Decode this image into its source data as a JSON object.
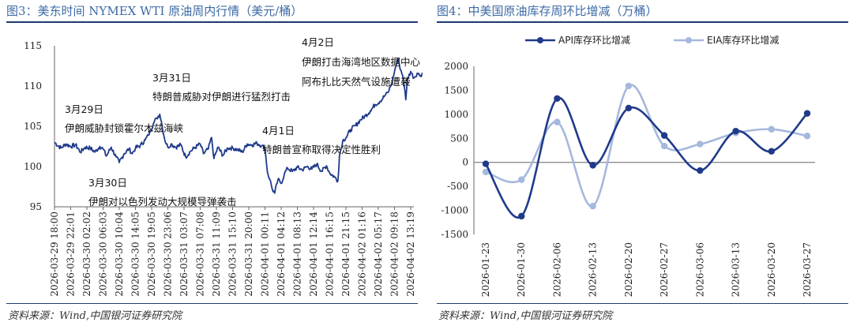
{
  "left": {
    "title": "图3：美东时间 NYMEX WTI 原油周内行情（美元/桶）",
    "source": "资料来源：Wind,中国银河证券研究院",
    "chart_data": {
      "type": "line",
      "title": "美东时间 NYMEX WTI 原油周内行情（美元/桶）",
      "ylim": [
        95,
        115
      ],
      "yticks": [
        95,
        100,
        105,
        110,
        115
      ],
      "xlabels": [
        "2026-03-29 18:00",
        "2026-03-29 22:01",
        "2026-03-30 02:02",
        "2026-03-30 06:03",
        "2026-03-30 10:04",
        "2026-03-30 14:05",
        "2026-03-30 19:05",
        "2026-03-30 23:06",
        "2026-03-31 03:07",
        "2026-03-31 07:08",
        "2026-03-31 11:09",
        "2026-03-31 15:10",
        "2026-03-31 20:00",
        "2026-04-01 00:11",
        "2026-04-01 04:12",
        "2026-04-01 08:13",
        "2026-04-01 12:14",
        "2026-04-01 16:15",
        "2026-04-01 21:15",
        "2026-04-02 01:16",
        "2026-04-02 05:17",
        "2026-04-02 09:18",
        "2026-04-02 13:19"
      ],
      "color": "#1f3a8a",
      "keypoints": [
        [
          0,
          103.0
        ],
        [
          0.4,
          102.3
        ],
        [
          0.7,
          102.8
        ],
        [
          1.0,
          102.5
        ],
        [
          1.3,
          102.7
        ],
        [
          1.6,
          101.8
        ],
        [
          1.9,
          102.4
        ],
        [
          2.2,
          102.3
        ],
        [
          2.5,
          101.8
        ],
        [
          2.8,
          102.5
        ],
        [
          3.0,
          102.2
        ],
        [
          3.2,
          101.3
        ],
        [
          3.5,
          102.4
        ],
        [
          3.8,
          101.2
        ],
        [
          4.0,
          100.5
        ],
        [
          4.3,
          101.6
        ],
        [
          4.6,
          102.2
        ],
        [
          4.8,
          101.6
        ],
        [
          5.0,
          102.3
        ],
        [
          5.3,
          102.6
        ],
        [
          5.6,
          103.3
        ],
        [
          5.8,
          103.9
        ],
        [
          6.1,
          105.3
        ],
        [
          6.3,
          106.0
        ],
        [
          6.5,
          106.5
        ],
        [
          6.6,
          105.6
        ],
        [
          6.8,
          103.4
        ],
        [
          7.0,
          102.4
        ],
        [
          7.2,
          102.8
        ],
        [
          7.5,
          102.4
        ],
        [
          7.8,
          102.7
        ],
        [
          8.1,
          101.2
        ],
        [
          8.4,
          101.9
        ],
        [
          8.7,
          102.4
        ],
        [
          9.0,
          102.8
        ],
        [
          9.2,
          101.6
        ],
        [
          9.5,
          102.2
        ],
        [
          9.7,
          103.6
        ],
        [
          9.85,
          101.0
        ],
        [
          10.1,
          102.4
        ],
        [
          10.4,
          101.4
        ],
        [
          10.7,
          102.3
        ],
        [
          11.0,
          102.3
        ],
        [
          11.3,
          102.1
        ],
        [
          11.6,
          101.8
        ],
        [
          11.9,
          102.8
        ],
        [
          12.2,
          102.7
        ],
        [
          12.5,
          102.9
        ],
        [
          12.8,
          102.6
        ],
        [
          13.0,
          102.3
        ],
        [
          13.15,
          99.3
        ],
        [
          13.3,
          98.4
        ],
        [
          13.45,
          97.2
        ],
        [
          13.6,
          96.7
        ],
        [
          13.8,
          98.4
        ],
        [
          14.0,
          97.9
        ],
        [
          14.2,
          99.1
        ],
        [
          14.4,
          99.8
        ],
        [
          14.7,
          99.4
        ],
        [
          15.0,
          99.9
        ],
        [
          15.3,
          99.6
        ],
        [
          15.6,
          100.0
        ],
        [
          15.9,
          99.7
        ],
        [
          16.2,
          100.3
        ],
        [
          16.5,
          99.4
        ],
        [
          16.8,
          100.1
        ],
        [
          17.0,
          99.2
        ],
        [
          17.3,
          98.7
        ],
        [
          17.5,
          98.2
        ],
        [
          17.6,
          101.3
        ],
        [
          17.8,
          103.2
        ],
        [
          18.0,
          103.6
        ],
        [
          18.3,
          104.6
        ],
        [
          18.6,
          105.1
        ],
        [
          18.9,
          105.8
        ],
        [
          19.2,
          106.3
        ],
        [
          19.5,
          106.9
        ],
        [
          19.8,
          107.7
        ],
        [
          20.1,
          108.1
        ],
        [
          20.4,
          108.8
        ],
        [
          20.6,
          109.2
        ],
        [
          20.8,
          110.2
        ],
        [
          21.0,
          111.8
        ],
        [
          21.2,
          113.4
        ],
        [
          21.3,
          112.6
        ],
        [
          21.5,
          111.3
        ],
        [
          21.6,
          110.0
        ],
        [
          21.7,
          108.3
        ],
        [
          21.8,
          110.9
        ],
        [
          22.0,
          111.8
        ],
        [
          22.2,
          111.0
        ],
        [
          22.4,
          111.6
        ],
        [
          22.6,
          111.3
        ],
        [
          22.8,
          111.8
        ],
        [
          23.0,
          111.5
        ],
        [
          23.2,
          111.9
        ]
      ],
      "annotations": [
        {
          "lines": [
            "3月29日",
            "伊朗威胁封锁霍尔木兹海峡"
          ]
        },
        {
          "lines": [
            "3月30日",
            "伊朗对以色列发动大规模导弹袭击"
          ]
        },
        {
          "lines": [
            "3月31日",
            "特朗普威胁对伊朗进行猛烈打击"
          ]
        },
        {
          "lines": [
            "4月1日",
            "特朗普宣称取得决定性胜利"
          ]
        },
        {
          "lines": [
            "4月2日",
            "伊朗打击海湾地区数据中心",
            "阿布扎比天然气设施遭袭"
          ]
        }
      ]
    }
  },
  "right": {
    "title": "图4：中美国原油库存周环比增减（万桶）",
    "source": "资料来源：Wind,中国银河证券研究院",
    "chart_data": {
      "type": "line",
      "title": "中美国原油库存周环比增减（万桶）",
      "categories": [
        "2026-01-23",
        "2026-01-30",
        "2026-02-06",
        "2026-02-13",
        "2026-02-20",
        "2026-02-27",
        "2026-03-06",
        "2026-03-13",
        "2026-03-20",
        "2026-03-27"
      ],
      "ylim": [
        -1500,
        2000
      ],
      "yticks": [
        -1500,
        -1000,
        -500,
        0,
        500,
        1000,
        1500,
        2000
      ],
      "legend_position": "top",
      "series": [
        {
          "name": "API库存环比增减",
          "color": "#1f3a8a",
          "values": [
            -30,
            -1120,
            1330,
            -60,
            1130,
            560,
            -170,
            650,
            230,
            1020
          ]
        },
        {
          "name": "EIA库存环比增减",
          "color": "#a5b8dd",
          "values": [
            -200,
            -360,
            840,
            -910,
            1590,
            340,
            380,
            610,
            690,
            550
          ]
        }
      ]
    }
  }
}
